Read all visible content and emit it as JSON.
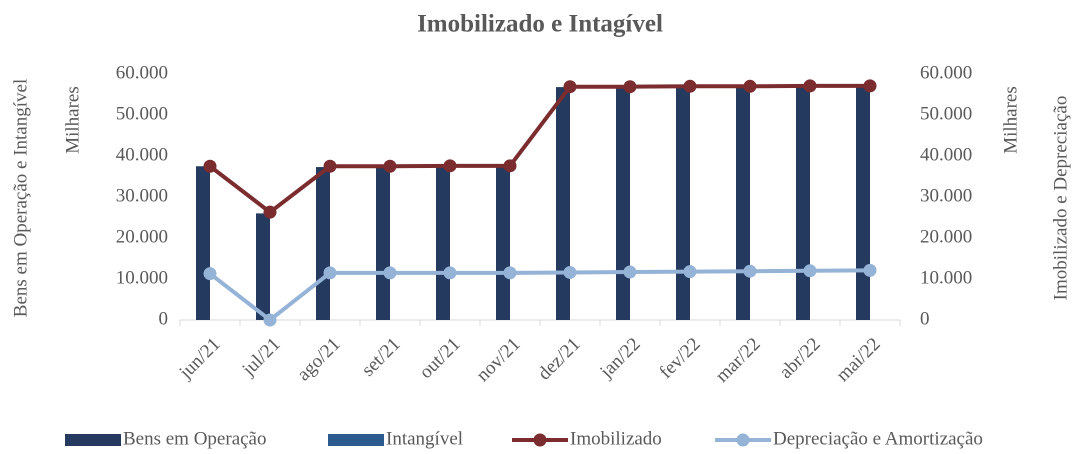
{
  "chart_data": {
    "type": "bar",
    "title": "Imobilizado e Intagível",
    "y_label": "Bens em Operação e Intangível",
    "y_unit": "Milhares",
    "y2_label": "Imobilizado e Depreciação",
    "y2_unit": "Milhares",
    "categories": [
      "jun/21",
      "jul/21",
      "ago/21",
      "set/21",
      "out/21",
      "nov/21",
      "dez/21",
      "jan/22",
      "fev/22",
      "mar/22",
      "abr/22",
      "mai/22"
    ],
    "series": [
      {
        "name": "Bens em Operação",
        "type": "bar",
        "color": "#243a5e",
        "values": [
          37500,
          26000,
          37300,
          37300,
          37500,
          37500,
          56800,
          56800,
          57000,
          57000,
          57000,
          57000
        ]
      },
      {
        "name": "Intangível",
        "type": "bar",
        "color": "#2e5b8e",
        "values": [
          0,
          0,
          0,
          0,
          0,
          0,
          0,
          0,
          0,
          0,
          0,
          0
        ]
      },
      {
        "name": "Imobilizado",
        "type": "line",
        "axis": "y2",
        "color": "#7b2c2f",
        "values": [
          37500,
          26300,
          37500,
          37500,
          37600,
          37600,
          56900,
          56900,
          57000,
          57000,
          57100,
          57100
        ]
      },
      {
        "name": "Depreciação e Amortização",
        "type": "line",
        "axis": "y2",
        "color": "#95b3d7",
        "values": [
          11300,
          0,
          11500,
          11500,
          11500,
          11500,
          11600,
          11700,
          11800,
          11900,
          12000,
          12100
        ]
      }
    ],
    "ylim": [
      0,
      60000
    ],
    "yticks": [
      0,
      {
        "value": 10000,
        "label": "10.000"
      },
      {
        "value": 20000,
        "label": "20.000"
      },
      {
        "value": 30000,
        "label": "30.000"
      },
      {
        "value": 40000,
        "label": "40.000"
      },
      {
        "value": 50000,
        "label": "50.000"
      },
      {
        "value": 60000,
        "label": "60.000"
      }
    ],
    "y2lim": [
      0,
      60000
    ],
    "y2ticks": [
      0,
      {
        "value": 10000,
        "label": "10.000"
      },
      {
        "value": 20000,
        "label": "20.000"
      },
      {
        "value": 30000,
        "label": "30.000"
      },
      {
        "value": 40000,
        "label": "40.000"
      },
      {
        "value": 50000,
        "label": "50.000"
      },
      {
        "value": 60000,
        "label": "60.000"
      }
    ],
    "legend": "bottom"
  }
}
